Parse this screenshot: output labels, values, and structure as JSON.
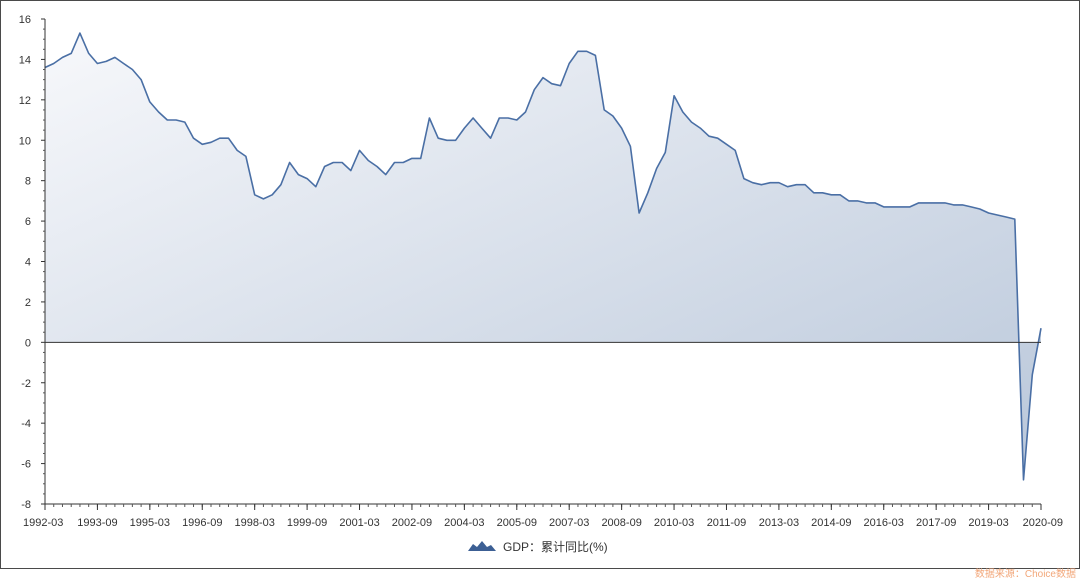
{
  "legend": {
    "label": "GDP：累计同比(%)"
  },
  "source_note": "数据来源：Choice数据",
  "colors": {
    "line": "#4a6fa5",
    "area_light": "#f7f8fb",
    "area_dark": "#b9c7da",
    "axis": "#333333"
  },
  "chart_data": {
    "type": "area",
    "title": "",
    "xlabel": "",
    "ylabel": "",
    "ylim": [
      -8,
      16
    ],
    "yticks": [
      -8,
      -6,
      -4,
      -2,
      0,
      2,
      4,
      6,
      8,
      10,
      12,
      14,
      16
    ],
    "xtick_labels": [
      "1992-03",
      "1993-09",
      "1995-03",
      "1996-09",
      "1998-03",
      "1999-09",
      "2001-03",
      "2002-09",
      "2004-03",
      "2005-09",
      "2007-03",
      "2008-09",
      "2010-03",
      "2011-09",
      "2013-03",
      "2014-09",
      "2016-03",
      "2017-09",
      "2019-03",
      "2020-09"
    ],
    "grid": false,
    "legend_position": "bottom-center",
    "series": [
      {
        "name": "GDP：累计同比(%)",
        "x": [
          "1992-03",
          "1992-06",
          "1992-09",
          "1992-12",
          "1993-03",
          "1993-06",
          "1993-09",
          "1993-12",
          "1994-03",
          "1994-06",
          "1994-09",
          "1994-12",
          "1995-03",
          "1995-06",
          "1995-09",
          "1995-12",
          "1996-03",
          "1996-06",
          "1996-09",
          "1996-12",
          "1997-03",
          "1997-06",
          "1997-09",
          "1997-12",
          "1998-03",
          "1998-06",
          "1998-09",
          "1998-12",
          "1999-03",
          "1999-06",
          "1999-09",
          "1999-12",
          "2000-03",
          "2000-06",
          "2000-09",
          "2000-12",
          "2001-03",
          "2001-06",
          "2001-09",
          "2001-12",
          "2002-03",
          "2002-06",
          "2002-09",
          "2002-12",
          "2003-03",
          "2003-06",
          "2003-09",
          "2003-12",
          "2004-03",
          "2004-06",
          "2004-09",
          "2004-12",
          "2005-03",
          "2005-06",
          "2005-09",
          "2005-12",
          "2006-03",
          "2006-06",
          "2006-09",
          "2006-12",
          "2007-03",
          "2007-06",
          "2007-09",
          "2007-12",
          "2008-03",
          "2008-06",
          "2008-09",
          "2008-12",
          "2009-03",
          "2009-06",
          "2009-09",
          "2009-12",
          "2010-03",
          "2010-06",
          "2010-09",
          "2010-12",
          "2011-03",
          "2011-06",
          "2011-09",
          "2011-12",
          "2012-03",
          "2012-06",
          "2012-09",
          "2012-12",
          "2013-03",
          "2013-06",
          "2013-09",
          "2013-12",
          "2014-03",
          "2014-06",
          "2014-09",
          "2014-12",
          "2015-03",
          "2015-06",
          "2015-09",
          "2015-12",
          "2016-03",
          "2016-06",
          "2016-09",
          "2016-12",
          "2017-03",
          "2017-06",
          "2017-09",
          "2017-12",
          "2018-03",
          "2018-06",
          "2018-09",
          "2018-12",
          "2019-03",
          "2019-06",
          "2019-09",
          "2019-12",
          "2020-03",
          "2020-06",
          "2020-09"
        ],
        "values": [
          13.6,
          13.8,
          14.1,
          14.3,
          15.3,
          14.3,
          13.8,
          13.9,
          14.1,
          13.8,
          13.5,
          13.0,
          11.9,
          11.4,
          11.0,
          11.0,
          10.9,
          10.1,
          9.8,
          9.9,
          10.1,
          10.1,
          9.5,
          9.2,
          7.3,
          7.1,
          7.3,
          7.8,
          8.9,
          8.3,
          8.1,
          7.7,
          8.7,
          8.9,
          8.9,
          8.5,
          9.5,
          9.0,
          8.7,
          8.3,
          8.9,
          8.9,
          9.1,
          9.1,
          11.1,
          10.1,
          10.0,
          10.0,
          10.6,
          11.1,
          10.6,
          10.1,
          11.1,
          11.1,
          11.0,
          11.4,
          12.5,
          13.1,
          12.8,
          12.7,
          13.8,
          14.4,
          14.4,
          14.2,
          11.5,
          11.2,
          10.6,
          9.7,
          6.4,
          7.4,
          8.6,
          9.4,
          12.2,
          11.4,
          10.9,
          10.6,
          10.2,
          10.1,
          9.8,
          9.5,
          8.1,
          7.9,
          7.8,
          7.9,
          7.9,
          7.7,
          7.8,
          7.8,
          7.4,
          7.4,
          7.3,
          7.3,
          7.0,
          7.0,
          6.9,
          6.9,
          6.7,
          6.7,
          6.7,
          6.7,
          6.9,
          6.9,
          6.9,
          6.9,
          6.8,
          6.8,
          6.7,
          6.6,
          6.4,
          6.3,
          6.2,
          6.1,
          -6.8,
          -1.6,
          0.7
        ]
      }
    ]
  }
}
